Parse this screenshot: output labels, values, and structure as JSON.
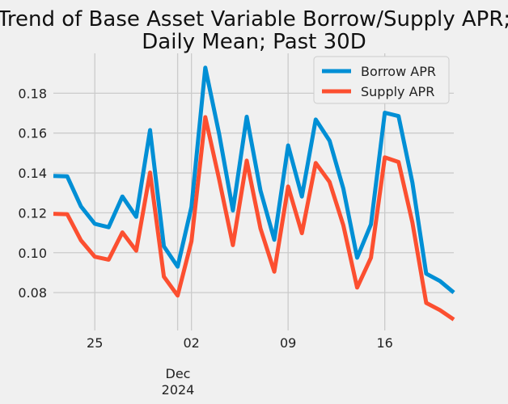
{
  "chart_data": {
    "type": "line",
    "title": "Trend of Base Asset Variable Borrow/Supply APR;\nDaily Mean; Past 30D",
    "title_lines": [
      "Trend of Base Asset Variable Borrow/Supply APR;",
      "Daily Mean; Past 30D"
    ],
    "xlabel": "",
    "ylabel": "",
    "x_start_day": 22,
    "x_range": [
      22,
      51
    ],
    "ylim": [
      0.061,
      0.2
    ],
    "y_ticks": [
      0.08,
      0.1,
      0.12,
      0.14,
      0.16,
      0.18
    ],
    "y_tick_labels": [
      "0.08",
      "0.10",
      "0.12",
      "0.14",
      "0.16",
      "0.18"
    ],
    "x_ticks": [
      {
        "day": 25,
        "label": "25"
      },
      {
        "day": 32,
        "label": "02"
      },
      {
        "day": 39,
        "label": "09"
      },
      {
        "day": 46,
        "label": "16"
      }
    ],
    "month_divider_day": 31,
    "month_label": "Dec",
    "year_label": "2024",
    "grid": true,
    "legend_position": "top-right",
    "series": [
      {
        "name": "Borrow APR",
        "color": "#008fd5",
        "values": [
          0.1385,
          0.1383,
          0.1232,
          0.1145,
          0.1128,
          0.1282,
          0.118,
          0.1615,
          0.1032,
          0.093,
          0.123,
          0.1928,
          0.1598,
          0.1212,
          0.1682,
          0.1312,
          0.1065,
          0.1538,
          0.1282,
          0.1668,
          0.1562,
          0.1322,
          0.0975,
          0.1142,
          0.1702,
          0.1685,
          0.1352,
          0.0895,
          0.0858,
          0.08
        ]
      },
      {
        "name": "Supply APR",
        "color": "#fc4f30",
        "values": [
          0.1195,
          0.1193,
          0.1062,
          0.098,
          0.0965,
          0.1102,
          0.101,
          0.1402,
          0.088,
          0.0785,
          0.1058,
          0.168,
          0.137,
          0.1038,
          0.1462,
          0.1122,
          0.0905,
          0.1332,
          0.1098,
          0.145,
          0.1355,
          0.1138,
          0.0825,
          0.0975,
          0.1478,
          0.1455,
          0.1152,
          0.0748,
          0.0712,
          0.0665
        ]
      }
    ]
  }
}
